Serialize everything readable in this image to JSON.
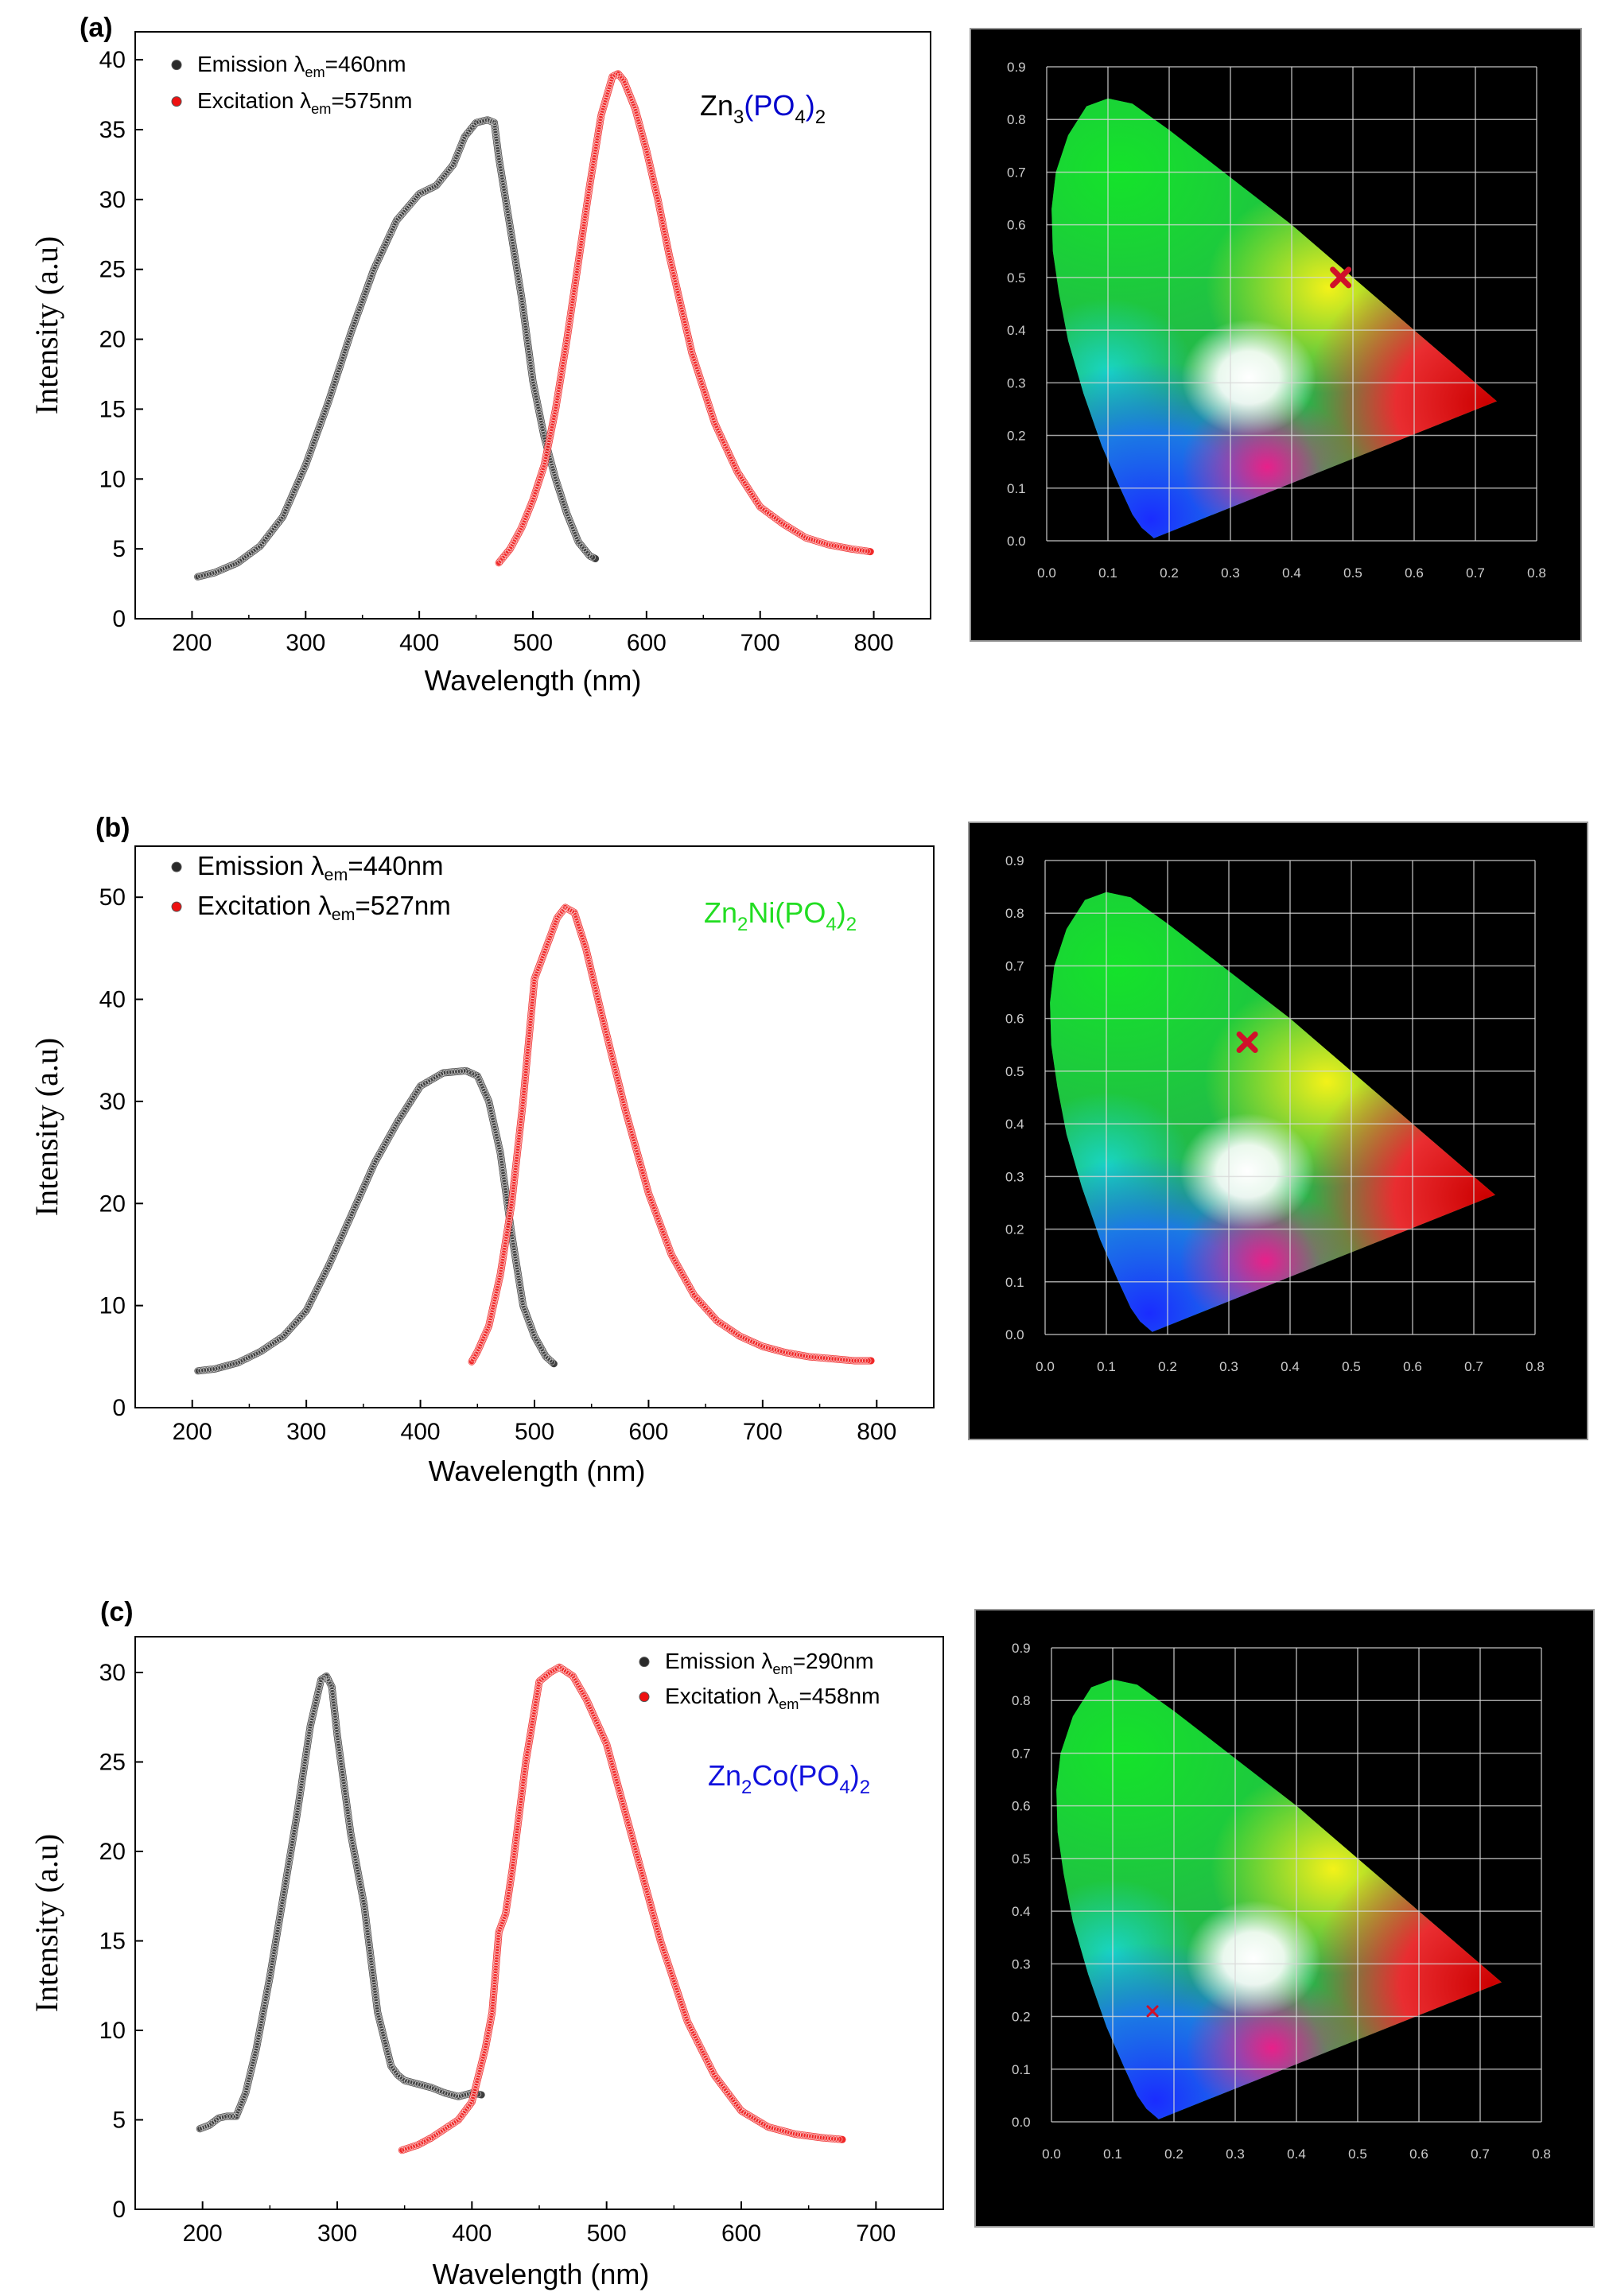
{
  "panels": [
    {
      "panel_label": "(a)",
      "compound": {
        "base": "Zn",
        "sub1": "3",
        "mid": "(PO",
        "sub2": "4",
        "end": ")",
        "sub3": "2",
        "color": "#000000",
        "paren_color": "#0000cc"
      },
      "chart_data": {
        "type": "line",
        "title": "",
        "xlabel": "Wavelength (nm)",
        "ylabel": "Intensity (a.u)",
        "xlim": [
          150,
          850
        ],
        "ylim": [
          0,
          42
        ],
        "xticks": [
          200,
          300,
          400,
          500,
          600,
          700,
          800
        ],
        "yticks": [
          0,
          5,
          10,
          15,
          20,
          25,
          30,
          35,
          40
        ],
        "legend_position": "top-left",
        "series": [
          {
            "name": "Emission",
            "legend_prefix": "Emission ",
            "legend_lambda": "λ",
            "legend_sub": "em",
            "legend_suffix": "=460nm",
            "color": "#2a2a2a",
            "x": [
              205,
              220,
              240,
              260,
              280,
              300,
              320,
              340,
              360,
              380,
              400,
              415,
              430,
              440,
              450,
              460,
              466,
              470,
              480,
              490,
              500,
              510,
              520,
              530,
              540,
              550,
              555
            ],
            "y": [
              3,
              3.3,
              4,
              5.2,
              7.3,
              11,
              15.5,
              20.5,
              25,
              28.5,
              30.4,
              31,
              32.5,
              34.5,
              35.5,
              35.7,
              35.5,
              33,
              28,
              23,
              17,
              13,
              10,
              7.5,
              5.5,
              4.5,
              4.3
            ]
          },
          {
            "name": "Excitation",
            "legend_prefix": "Excitation ",
            "legend_lambda": "λ",
            "legend_sub": "em",
            "legend_suffix": "=575nm",
            "color": "#ee1111",
            "x": [
              470,
              480,
              490,
              500,
              510,
              520,
              530,
              540,
              550,
              560,
              570,
              575,
              580,
              590,
              600,
              610,
              620,
              640,
              660,
              680,
              700,
              720,
              740,
              760,
              780,
              797
            ],
            "y": [
              4,
              5,
              6.5,
              8.5,
              11,
              15,
              20,
              25.5,
              31,
              36,
              38.8,
              39,
              38.5,
              36.5,
              33.5,
              30,
              26,
              19,
              14,
              10.5,
              8,
              6.8,
              5.8,
              5.3,
              5,
              4.8
            ]
          }
        ]
      },
      "cie": {
        "axis_ticks": [
          "0.0",
          "0.1",
          "0.2",
          "0.3",
          "0.4",
          "0.5",
          "0.6",
          "0.7",
          "0.8",
          "0.9"
        ],
        "marker": {
          "x": 0.48,
          "y": 0.5,
          "size": "large"
        }
      }
    },
    {
      "panel_label": "(b)",
      "compound": {
        "base": "Zn",
        "sub1": "2",
        "mid": "Ni(PO",
        "sub2": "4",
        "end": ")",
        "sub3": "2",
        "color": "#22dd22",
        "paren_color": "#22dd22"
      },
      "chart_data": {
        "type": "line",
        "title": "",
        "xlabel": "Wavelength (nm)",
        "ylabel": "Intensity (a.u)",
        "xlim": [
          150,
          850
        ],
        "ylim": [
          0,
          55
        ],
        "xticks": [
          200,
          300,
          400,
          500,
          600,
          700,
          800
        ],
        "yticks": [
          0,
          10,
          20,
          30,
          40,
          50
        ],
        "legend_position": "top-left",
        "series": [
          {
            "name": "Emission",
            "legend_prefix": "Emission ",
            "legend_lambda": "λ",
            "legend_sub": "em",
            "legend_suffix": "=440nm",
            "color": "#2a2a2a",
            "x": [
              205,
              220,
              240,
              260,
              280,
              300,
              320,
              340,
              360,
              380,
              400,
              420,
              440,
              450,
              460,
              470,
              480,
              490,
              500,
              510,
              517
            ],
            "y": [
              3.6,
              3.8,
              4.4,
              5.5,
              7,
              9.5,
              14,
              19,
              24,
              28,
              31.5,
              32.8,
              33,
              32.5,
              30,
              25,
              17,
              10,
              7,
              5,
              4.3
            ]
          },
          {
            "name": "Excitation",
            "legend_prefix": "Excitation ",
            "legend_lambda": "λ",
            "legend_sub": "em",
            "legend_suffix": "=527nm",
            "color": "#ee1111",
            "x": [
              445,
              450,
              460,
              470,
              480,
              490,
              500,
              505,
              510,
              520,
              527,
              535,
              545,
              560,
              580,
              600,
              620,
              640,
              660,
              680,
              700,
              720,
              740,
              760,
              780,
              795
            ],
            "y": [
              4.5,
              5.5,
              8,
              13,
              20,
              30,
              42,
              43.5,
              45,
              48,
              49,
              48.5,
              45,
              38,
              29,
              21,
              15,
              11,
              8.5,
              7,
              6,
              5.4,
              5,
              4.8,
              4.6,
              4.6
            ]
          }
        ]
      },
      "cie": {
        "axis_ticks": [
          "0.0",
          "0.1",
          "0.2",
          "0.3",
          "0.4",
          "0.5",
          "0.6",
          "0.7",
          "0.8",
          "0.9"
        ],
        "marker": {
          "x": 0.33,
          "y": 0.555,
          "size": "large"
        }
      }
    },
    {
      "panel_label": "(c)",
      "compound": {
        "base": "Zn",
        "sub1": "2",
        "mid": "Co(PO",
        "sub2": "4",
        "end": ")",
        "sub3": "2",
        "color": "#1111dd",
        "paren_color": "#1111dd"
      },
      "chart_data": {
        "type": "line",
        "title": "",
        "xlabel": "Wavelength (nm)",
        "ylabel": "Intensity (a.u)",
        "xlim": [
          150,
          750
        ],
        "ylim": [
          0,
          32
        ],
        "xticks": [
          200,
          300,
          400,
          500,
          600,
          700
        ],
        "yticks": [
          0,
          5,
          10,
          15,
          20,
          25,
          30
        ],
        "legend_position": "top-right",
        "series": [
          {
            "name": "Emission",
            "legend_prefix": "Emission ",
            "legend_lambda": "λ",
            "legend_sub": "em",
            "legend_suffix": "=290nm",
            "color": "#2a2a2a",
            "x": [
              198,
              205,
              212,
              218,
              225,
              232,
              240,
              250,
              260,
              270,
              280,
              288,
              292,
              296,
              300,
              310,
              320,
              330,
              340,
              345,
              350,
              360,
              370,
              380,
              390,
              400,
              407
            ],
            "y": [
              4.5,
              4.7,
              5.1,
              5.2,
              5.2,
              6.5,
              9,
              13,
              17.5,
              22,
              27,
              29.6,
              29.8,
              29.2,
              26.5,
              21,
              17,
              11,
              8,
              7.5,
              7.2,
              7,
              6.8,
              6.5,
              6.3,
              6.5,
              6.4
            ]
          },
          {
            "name": "Excitation",
            "legend_prefix": "Excitation ",
            "legend_lambda": "λ",
            "legend_sub": "em",
            "legend_suffix": "=458nm",
            "color": "#ee1111",
            "x": [
              348,
              360,
              370,
              380,
              390,
              400,
              410,
              415,
              420,
              425,
              430,
              440,
              450,
              458,
              465,
              475,
              485,
              500,
              520,
              540,
              560,
              580,
              600,
              620,
              640,
              660,
              675
            ],
            "y": [
              3.3,
              3.6,
              4,
              4.5,
              5,
              6,
              9,
              11,
              15.5,
              16.5,
              19,
              25,
              29.5,
              30,
              30.3,
              29.8,
              28.5,
              26,
              20.5,
              15,
              10.5,
              7.5,
              5.5,
              4.6,
              4.2,
              4,
              3.9
            ]
          }
        ]
      },
      "cie": {
        "axis_ticks": [
          "0.0",
          "0.1",
          "0.2",
          "0.3",
          "0.4",
          "0.5",
          "0.6",
          "0.7",
          "0.8",
          "0.9"
        ],
        "marker": {
          "x": 0.165,
          "y": 0.21,
          "size": "small"
        }
      }
    }
  ]
}
